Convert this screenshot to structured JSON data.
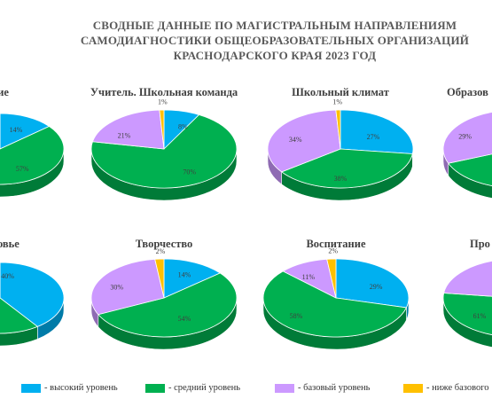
{
  "title_lines": [
    "СВОДНЫЕ ДАННЫЕ ПО МАГИСТРАЛЬНЫМ НАПРАВЛЕНИЯМ",
    "САМОДИАГНОСТИКИ ОБЩЕОБРАЗОВАТЕЛЬНЫХ ОРГАНИЗАЦИЙ",
    "КРАСНОДАРСКОГО КРАЯ 2023 ГОД"
  ],
  "colors": {
    "high": "#00b0f0",
    "medium": "#00b050",
    "basic": "#cc99ff",
    "below": "#ffc000"
  },
  "legend": [
    {
      "key": "high",
      "label": "- высокий уровень"
    },
    {
      "key": "medium",
      "label": "- средний уровень"
    },
    {
      "key": "basic",
      "label": "- базовый уровень"
    },
    {
      "key": "below",
      "label": "- ниже базового"
    }
  ],
  "chart_data": [
    {
      "type": "pie",
      "title": "ние",
      "series": [
        "high",
        "medium",
        "basic",
        "below"
      ],
      "values": [
        14,
        57,
        null,
        null
      ],
      "labels": [
        "14%",
        "57%",
        "",
        ""
      ]
    },
    {
      "type": "pie",
      "title": "Учитель. Школьная команда",
      "series": [
        "high",
        "medium",
        "basic",
        "below"
      ],
      "values": [
        8,
        70,
        21,
        1
      ],
      "labels": [
        "8%",
        "70%",
        "21%",
        "1%"
      ]
    },
    {
      "type": "pie",
      "title": "Школьный климат",
      "series": [
        "high",
        "medium",
        "basic",
        "below"
      ],
      "values": [
        27,
        38,
        34,
        1
      ],
      "labels": [
        "27%",
        "38%",
        "34%",
        "1%"
      ]
    },
    {
      "type": "pie",
      "title": "Образов",
      "series": [
        "high",
        "medium",
        "basic",
        "below"
      ],
      "values": [
        null,
        null,
        29,
        null
      ],
      "labels": [
        "",
        "",
        "29%",
        ""
      ]
    },
    {
      "type": "pie",
      "title": "ровье",
      "series": [
        "high",
        "medium",
        "basic",
        "below"
      ],
      "values": [
        40,
        null,
        null,
        null
      ],
      "labels": [
        "40%",
        "",
        "",
        ""
      ]
    },
    {
      "type": "pie",
      "title": "Творчество",
      "series": [
        "high",
        "medium",
        "basic",
        "below"
      ],
      "values": [
        14,
        54,
        30,
        2
      ],
      "labels": [
        "14%",
        "54%",
        "30%",
        "2%"
      ]
    },
    {
      "type": "pie",
      "title": "Воспитание",
      "series": [
        "high",
        "medium",
        "basic",
        "below"
      ],
      "values": [
        29,
        58,
        11,
        2
      ],
      "labels": [
        "29%",
        "58%",
        "11%",
        "2%"
      ]
    },
    {
      "type": "pie",
      "title": "Про",
      "series": [
        "high",
        "medium",
        "basic",
        "below"
      ],
      "values": [
        null,
        61,
        null,
        null
      ],
      "labels": [
        "",
        "61%",
        "",
        ""
      ]
    }
  ]
}
